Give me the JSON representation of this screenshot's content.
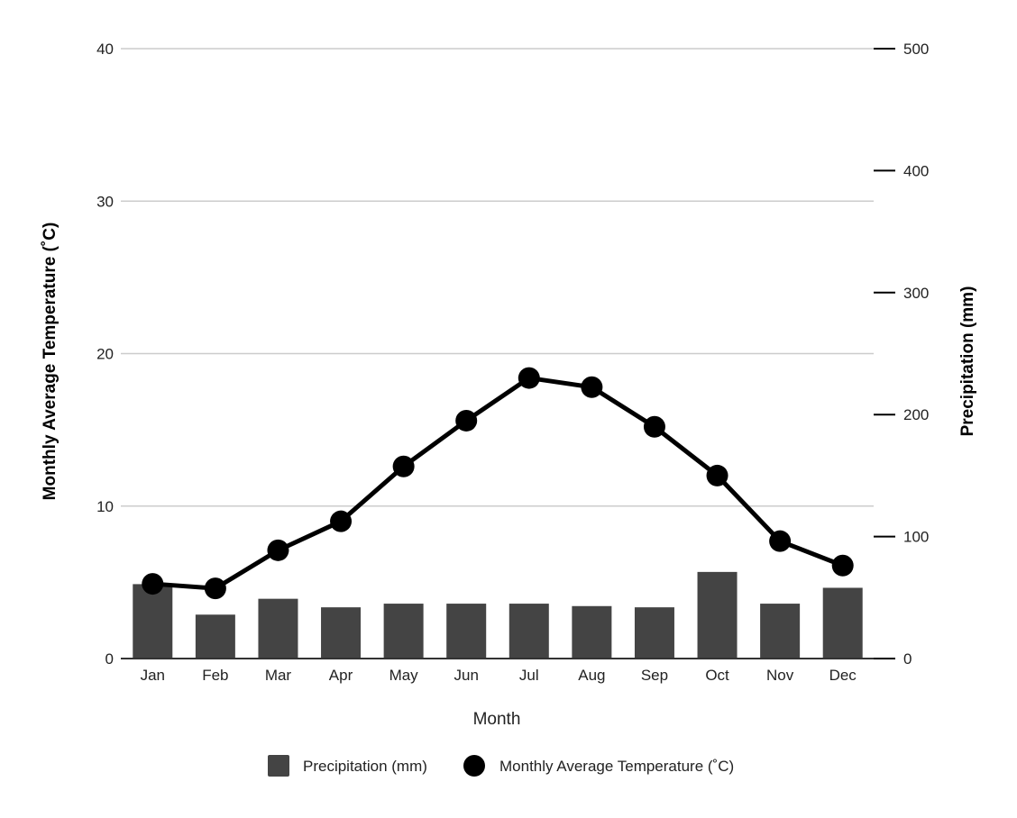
{
  "chart_data": {
    "type": "bar",
    "categories": [
      "Jan",
      "Feb",
      "Mar",
      "Apr",
      "May",
      "Jun",
      "Jul",
      "Aug",
      "Sep",
      "Oct",
      "Nov",
      "Dec"
    ],
    "xlabel": "Month",
    "ylabel_left": "Monthly Average Temperature (˚C)",
    "ylabel_right": "Precipitation  (mm)",
    "ylim_left": [
      0,
      40
    ],
    "yticks_left": [
      0,
      10,
      20,
      30,
      40
    ],
    "ylim_right": [
      0,
      500
    ],
    "yticks_right": [
      0,
      100,
      200,
      300,
      400,
      500
    ],
    "grid": true,
    "legend_position": "bottom",
    "series": [
      {
        "name": "Precipitation (mm)",
        "type": "bar",
        "axis": "right",
        "color": "#444444",
        "values": [
          61,
          36,
          49,
          42,
          45,
          45,
          45,
          43,
          42,
          71,
          45,
          58
        ]
      },
      {
        "name": "Monthly Average Temperature (˚C)",
        "type": "line",
        "axis": "left",
        "color": "#000000",
        "values": [
          4.9,
          4.6,
          7.1,
          9.0,
          12.6,
          15.6,
          18.4,
          17.8,
          15.2,
          12.0,
          7.7,
          6.1
        ]
      }
    ]
  }
}
